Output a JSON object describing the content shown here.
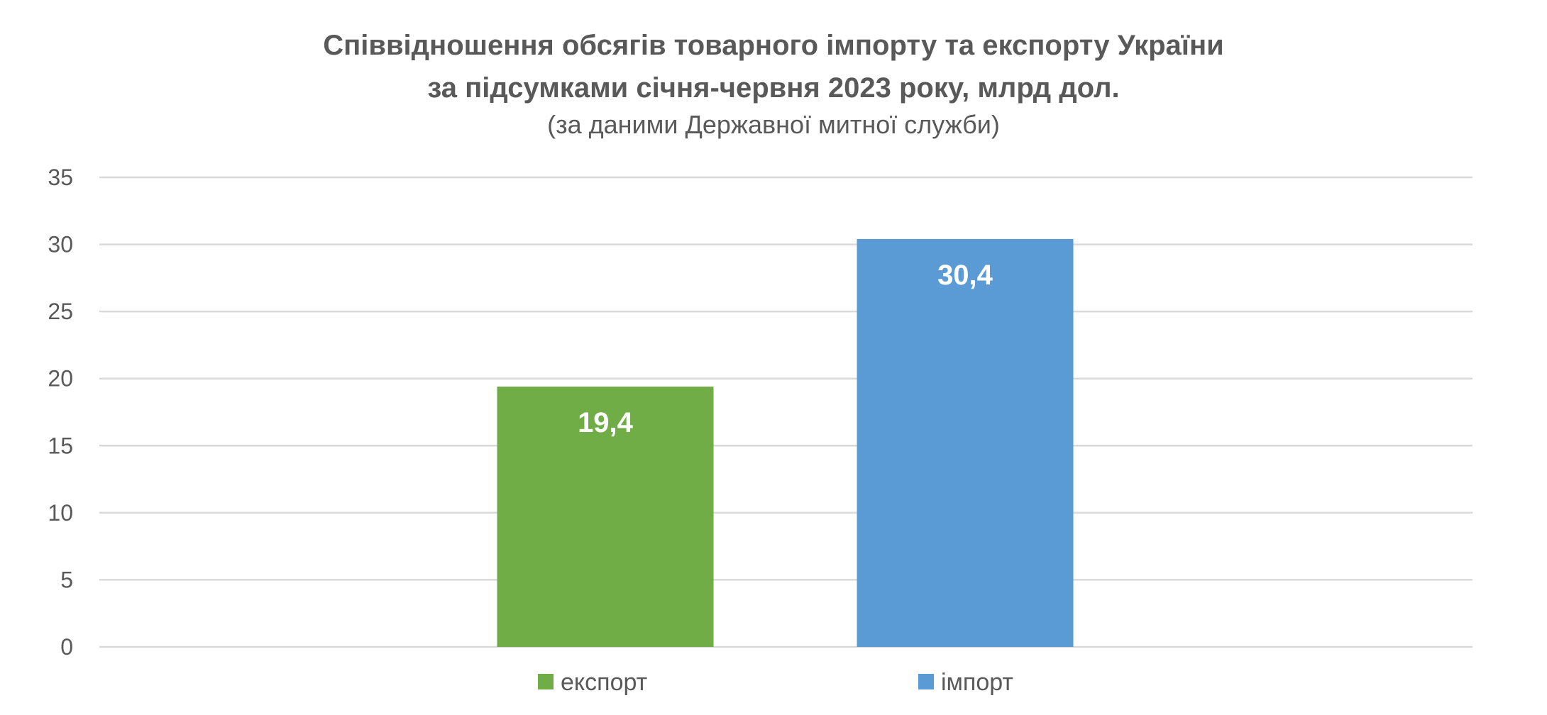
{
  "chart_data": {
    "type": "bar",
    "title": "Співвідношення обсягів товарного імпорту та експорту України",
    "title_line2": "за підсумками січня-червня 2023 року, млрд дол.",
    "subtitle": "(за даними Державної митної служби)",
    "series": [
      {
        "name": "експорт",
        "values": [
          19.4
        ],
        "label": "19,4",
        "color": "#70ad47"
      },
      {
        "name": "імпорт",
        "values": [
          30.4
        ],
        "label": "30,4",
        "color": "#5b9bd5"
      }
    ],
    "ylim": [
      0,
      35
    ],
    "yticks": [
      "0",
      "5",
      "10",
      "15",
      "20",
      "25",
      "30",
      "35"
    ],
    "grid": true,
    "legend_position": "bottom"
  }
}
